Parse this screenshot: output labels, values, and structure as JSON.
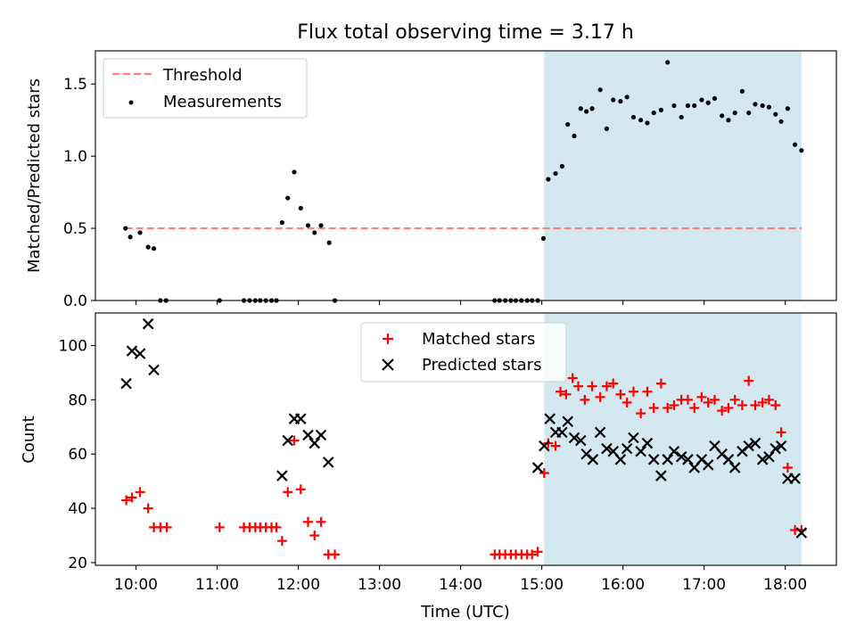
{
  "chart_data": {
    "type": "scatter",
    "title": "Flux total observing time = 3.17 h",
    "xlabel": "Time (UTC)",
    "xlim": [
      9.5,
      18.63
    ],
    "x_ticks": [
      {
        "value": 10,
        "label": "10:00"
      },
      {
        "value": 11,
        "label": "11:00"
      },
      {
        "value": 12,
        "label": "12:00"
      },
      {
        "value": 13,
        "label": "13:00"
      },
      {
        "value": 14,
        "label": "14:00"
      },
      {
        "value": 15,
        "label": "15:00"
      },
      {
        "value": 16,
        "label": "16:00"
      },
      {
        "value": 17,
        "label": "17:00"
      },
      {
        "value": 18,
        "label": "18:00"
      }
    ],
    "shaded_interval": {
      "from": 15.03,
      "to": 18.2,
      "color": "#d3e9ef"
    },
    "panels": [
      {
        "ylabel": "Matched/Predicted stars",
        "ylim": [
          0,
          1.73
        ],
        "y_ticks": [
          {
            "value": 0,
            "label": "0.0"
          },
          {
            "value": 0.5,
            "label": "0.5"
          },
          {
            "value": 1.0,
            "label": "1.0"
          },
          {
            "value": 1.5,
            "label": "1.5"
          }
        ],
        "legend": {
          "position": "upper left",
          "threshold_label": "Threshold",
          "measurements_label": "Measurements"
        },
        "threshold": {
          "value": 0.5,
          "color": "#ff7f7f"
        },
        "measurements": {
          "color": "#000000",
          "x": [
            9.87,
            9.93,
            10.05,
            10.15,
            10.22,
            10.3,
            10.37,
            11.03,
            11.33,
            11.4,
            11.47,
            11.53,
            11.6,
            11.67,
            11.73,
            11.8,
            11.87,
            11.95,
            12.03,
            12.12,
            12.2,
            12.28,
            12.38,
            12.45,
            14.42,
            14.48,
            14.55,
            14.62,
            14.68,
            14.75,
            14.82,
            14.88,
            14.95,
            15.02,
            15.08,
            15.17,
            15.25,
            15.32,
            15.4,
            15.48,
            15.55,
            15.62,
            15.72,
            15.8,
            15.88,
            15.97,
            16.05,
            16.13,
            16.22,
            16.3,
            16.38,
            16.47,
            16.55,
            16.63,
            16.72,
            16.8,
            16.88,
            16.97,
            17.05,
            17.13,
            17.22,
            17.3,
            17.38,
            17.47,
            17.55,
            17.63,
            17.72,
            17.8,
            17.88,
            17.95,
            18.03,
            18.12,
            18.2
          ],
          "y": [
            0.5,
            0.44,
            0.47,
            0.37,
            0.36,
            0.0,
            0.0,
            0.0,
            0.0,
            0.0,
            0.0,
            0.0,
            0.0,
            0.0,
            0.0,
            0.54,
            0.71,
            0.89,
            0.64,
            0.52,
            0.47,
            0.52,
            0.4,
            0.0,
            0.0,
            0.0,
            0.0,
            0.0,
            0.0,
            0.0,
            0.0,
            0.0,
            0.0,
            0.43,
            0.84,
            0.88,
            0.93,
            1.22,
            1.14,
            1.33,
            1.31,
            1.33,
            1.46,
            1.19,
            1.39,
            1.38,
            1.41,
            1.27,
            1.25,
            1.23,
            1.3,
            1.32,
            1.65,
            1.35,
            1.27,
            1.35,
            1.35,
            1.39,
            1.37,
            1.4,
            1.28,
            1.25,
            1.3,
            1.45,
            1.3,
            1.36,
            1.35,
            1.34,
            1.29,
            1.24,
            1.33,
            1.08,
            1.04
          ]
        }
      },
      {
        "ylabel": "Count",
        "ylim": [
          19,
          112
        ],
        "y_ticks": [
          {
            "value": 20,
            "label": "20"
          },
          {
            "value": 40,
            "label": "40"
          },
          {
            "value": 60,
            "label": "60"
          },
          {
            "value": 80,
            "label": "80"
          },
          {
            "value": 100,
            "label": "100"
          }
        ],
        "legend": {
          "position": "upper center",
          "matched_label": "Matched stars",
          "predicted_label": "Predicted stars"
        },
        "matched": {
          "color": "#ff0000",
          "x": [
            9.88,
            9.95,
            10.05,
            10.15,
            10.22,
            10.3,
            10.38,
            11.03,
            11.33,
            11.4,
            11.47,
            11.53,
            11.6,
            11.67,
            11.73,
            11.8,
            11.87,
            11.95,
            12.03,
            12.12,
            12.2,
            12.28,
            12.37,
            12.45,
            14.42,
            14.48,
            14.55,
            14.62,
            14.68,
            14.75,
            14.82,
            14.88,
            14.95,
            15.03,
            15.08,
            15.17,
            15.23,
            15.3,
            15.38,
            15.45,
            15.53,
            15.62,
            15.72,
            15.8,
            15.88,
            15.97,
            16.05,
            16.13,
            16.22,
            16.3,
            16.38,
            16.47,
            16.55,
            16.63,
            16.72,
            16.8,
            16.88,
            16.97,
            17.05,
            17.13,
            17.22,
            17.3,
            17.38,
            17.47,
            17.55,
            17.63,
            17.72,
            17.8,
            17.88,
            17.95,
            18.03,
            18.12,
            18.2
          ],
          "y": [
            43,
            44,
            46,
            40,
            33,
            33,
            33,
            33,
            33,
            33,
            33,
            33,
            33,
            33,
            33,
            28,
            46,
            65,
            47,
            35,
            30,
            35,
            23,
            23,
            23,
            23,
            23,
            23,
            23,
            23,
            23,
            23,
            24,
            53,
            64,
            63,
            83,
            82,
            88,
            85,
            80,
            85,
            81,
            85,
            86,
            82,
            79,
            83,
            75,
            83,
            77,
            86,
            77,
            78,
            80,
            80,
            77,
            81,
            79,
            80,
            76,
            77,
            80,
            78,
            87,
            78,
            79,
            80,
            78,
            68,
            55,
            32,
            32
          ]
        },
        "predicted": {
          "color": "#000000",
          "x": [
            9.88,
            9.95,
            10.05,
            10.15,
            10.22,
            11.8,
            11.87,
            11.95,
            12.03,
            12.12,
            12.2,
            12.28,
            12.37,
            14.95,
            15.03,
            15.1,
            15.17,
            15.25,
            15.32,
            15.4,
            15.48,
            15.55,
            15.63,
            15.72,
            15.8,
            15.88,
            15.97,
            16.05,
            16.13,
            16.22,
            16.3,
            16.38,
            16.47,
            16.55,
            16.63,
            16.72,
            16.8,
            16.88,
            16.97,
            17.05,
            17.13,
            17.22,
            17.3,
            17.38,
            17.47,
            17.55,
            17.63,
            17.72,
            17.8,
            17.88,
            17.95,
            18.03,
            18.12,
            18.2
          ],
          "y": [
            86,
            98,
            97,
            108,
            91,
            52,
            65,
            73,
            73,
            67,
            64,
            67,
            57,
            55,
            63,
            73,
            68,
            68,
            72,
            66,
            65,
            60,
            58,
            68,
            62,
            61,
            58,
            62,
            66,
            61,
            64,
            58,
            52,
            58,
            61,
            59,
            58,
            55,
            58,
            56,
            63,
            60,
            58,
            55,
            61,
            63,
            64,
            58,
            59,
            62,
            63,
            51,
            51,
            31
          ]
        }
      }
    ]
  }
}
